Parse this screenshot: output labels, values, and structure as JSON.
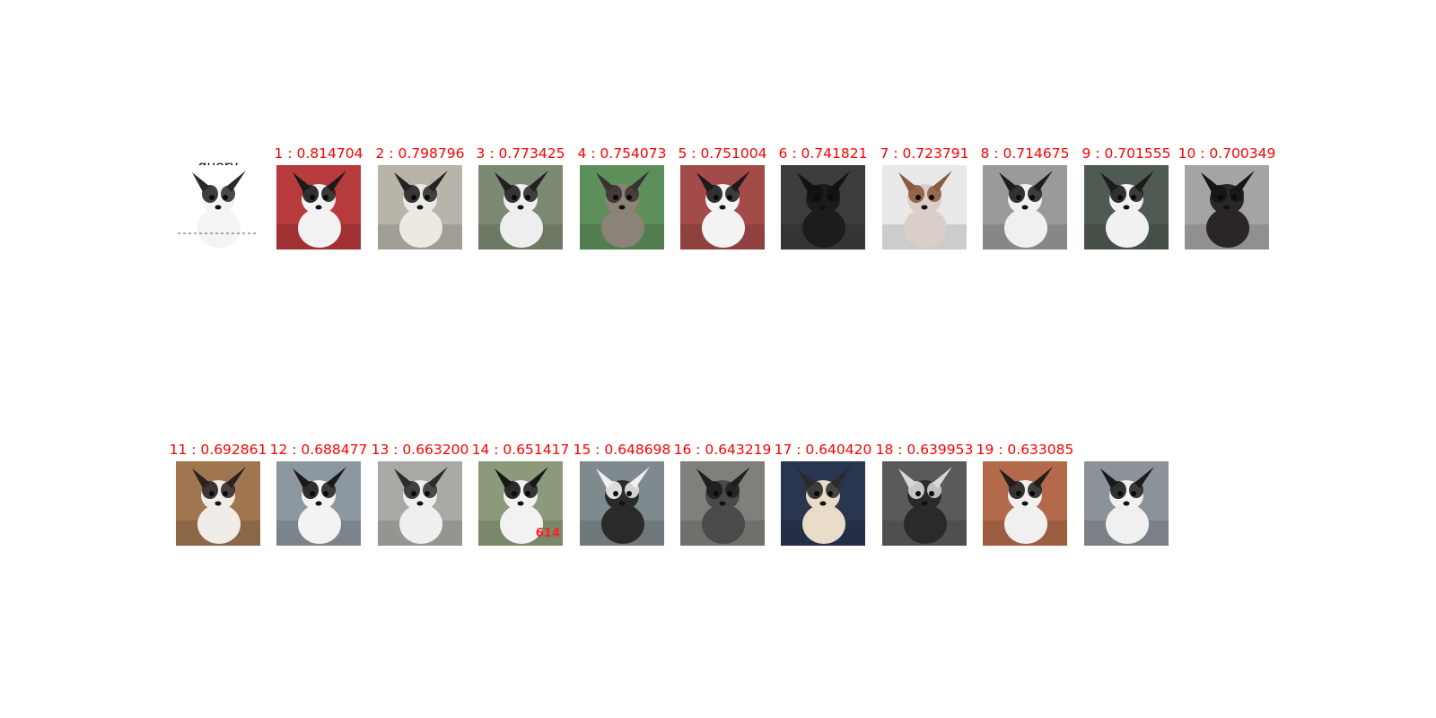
{
  "query": {
    "label": "query"
  },
  "results": [
    {
      "label": "1 : 0.814704",
      "bg": "#b73a3c",
      "body": "#f2f2f2",
      "patch": "#1a1a1a"
    },
    {
      "label": "2 : 0.798796",
      "bg": "#b8b4aa",
      "body": "#ece8e2",
      "patch": "#222222"
    },
    {
      "label": "3 : 0.773425",
      "bg": "#7d8a73",
      "body": "#eeeeee",
      "patch": "#202020"
    },
    {
      "label": "4 : 0.754073",
      "bg": "#5d8f5a",
      "body": "#8b8278",
      "patch": "#3a3230"
    },
    {
      "label": "5 : 0.751004",
      "bg": "#a34b49",
      "body": "#f3f3f3",
      "patch": "#1b1b1b"
    },
    {
      "label": "6 : 0.741821",
      "bg": "#3c3c3c",
      "body": "#1c1c1c",
      "patch": "#121212"
    },
    {
      "label": "7 : 0.723791",
      "bg": "#e9e9e9",
      "body": "#d9cfc8",
      "patch": "#8a5a3b"
    },
    {
      "label": "8 : 0.714675",
      "bg": "#9a9a98",
      "body": "#f0f0f0",
      "patch": "#1d1d1d"
    },
    {
      "label": "9 : 0.701555",
      "bg": "#4f5a52",
      "body": "#f1f1f1",
      "patch": "#1b1b1b"
    },
    {
      "label": "10 : 0.700349",
      "bg": "#a4a4a4",
      "body": "#2a2626",
      "patch": "#151515"
    },
    {
      "label": "11 : 0.692861",
      "bg": "#a07650",
      "body": "#f0ece8",
      "patch": "#2a2020"
    },
    {
      "label": "12 : 0.688477",
      "bg": "#8d97a0",
      "body": "#f3f3f3",
      "patch": "#1a1a1a"
    },
    {
      "label": "13 : 0.663200",
      "bg": "#a9a9a6",
      "body": "#efefef",
      "patch": "#2b2b2b"
    },
    {
      "label": "14 : 0.651417",
      "bg": "#8a9a7a",
      "body": "#f2f2f2",
      "patch": "#161616",
      "tag": "614"
    },
    {
      "label": "15 : 0.648698",
      "bg": "#7f8a8e",
      "body": "#2a2a2a",
      "patch": "#f0f0f0"
    },
    {
      "label": "16 : 0.643219",
      "bg": "#7f7f7c",
      "body": "#4a4a4a",
      "patch": "#1e1e1e"
    },
    {
      "label": "17 : 0.640420",
      "bg": "#2a3550",
      "body": "#e8dcc8",
      "patch": "#2a2a2a"
    },
    {
      "label": "18 : 0.639953",
      "bg": "#5a5a5a",
      "body": "#2a2a2a",
      "patch": "#d8d8d8"
    },
    {
      "label": "19 : 0.633085",
      "bg": "#b26a4a",
      "body": "#f0f0f0",
      "patch": "#221c1c"
    },
    {
      "label": "",
      "bg": "#8b9298",
      "body": "#f0f0f0",
      "patch": "#1b1b1b"
    }
  ]
}
